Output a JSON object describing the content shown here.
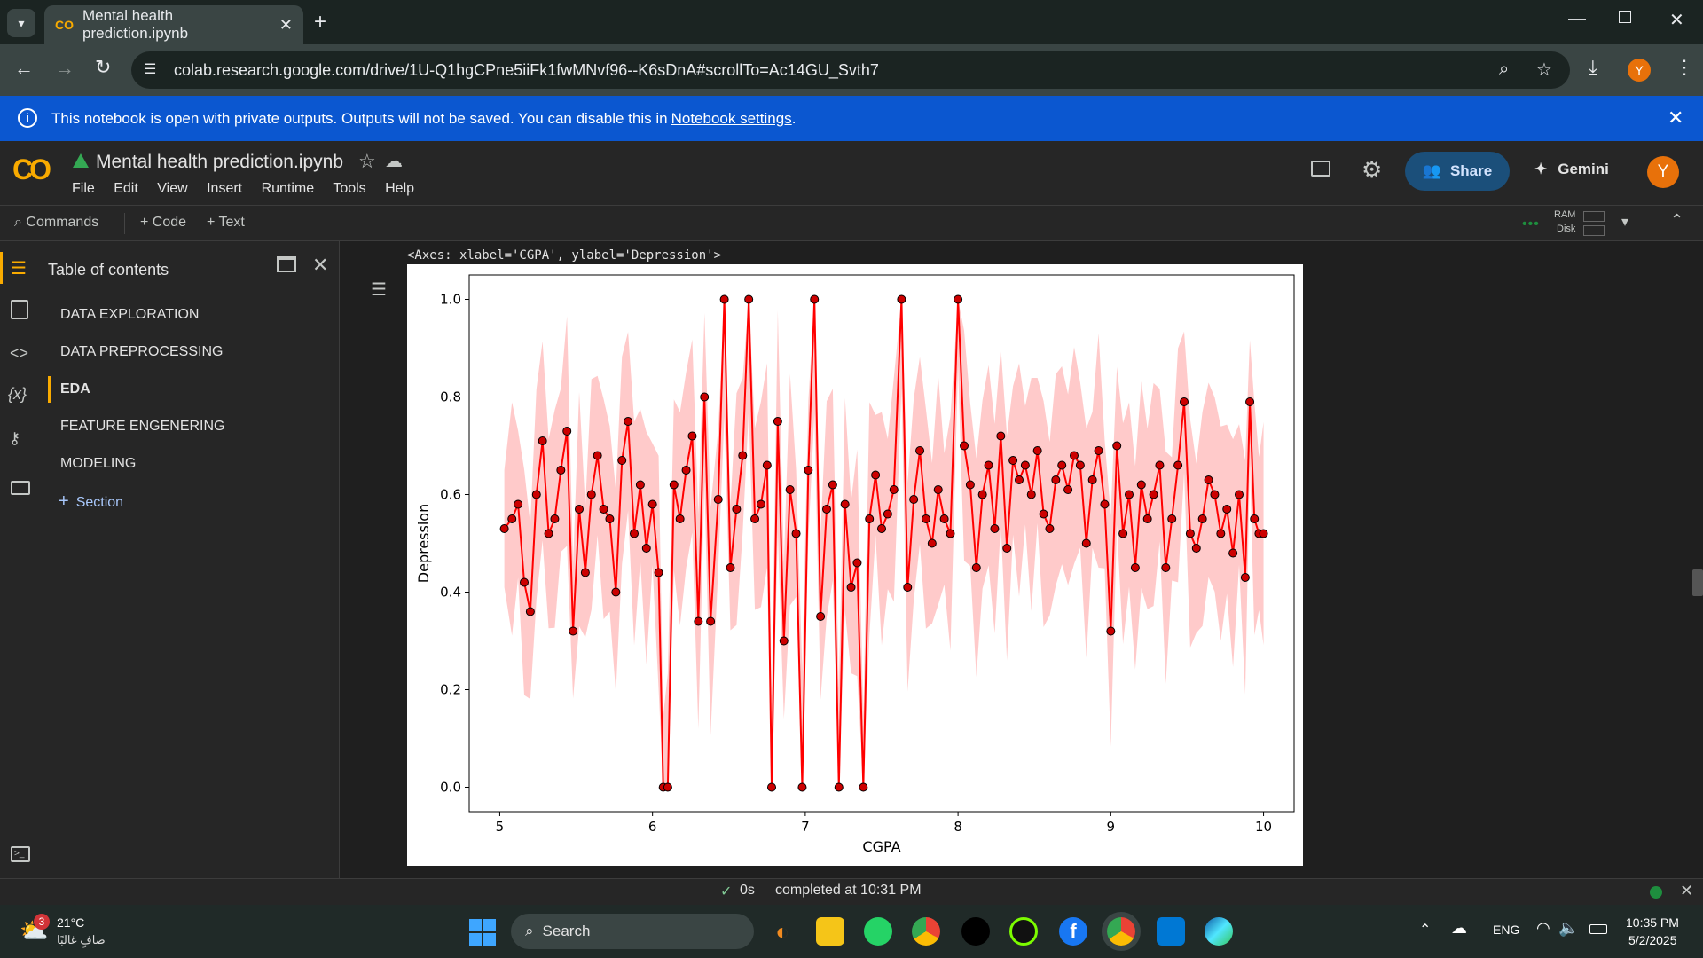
{
  "browser": {
    "tab_title": "Mental health prediction.ipynb",
    "url": "colab.research.google.com/drive/1U-Q1hgCPne5iiFk1fwMNvf96--K6sDnA#scrollTo=Ac14GU_Svth7",
    "profile_initial": "Y"
  },
  "infobar": {
    "text": "This notebook is open with private outputs. Outputs will not be saved. You can disable this in",
    "link": "Notebook settings",
    "suffix": "."
  },
  "colab": {
    "notebook_title": "Mental health prediction.ipynb",
    "logo": "CO",
    "menu": [
      "File",
      "Edit",
      "View",
      "Insert",
      "Runtime",
      "Tools",
      "Help"
    ],
    "share_label": "Share",
    "gemini_label": "Gemini",
    "avatar_initial": "Y"
  },
  "toolbar": {
    "commands": "Commands",
    "code": "+ Code",
    "text": "+ Text",
    "ram": "RAM",
    "disk": "Disk"
  },
  "toc": {
    "title": "Table of contents",
    "items": [
      "DATA EXPLORATION",
      "DATA PREPROCESSING",
      "EDA",
      "FEATURE ENGENERING",
      "MODELING"
    ],
    "add_section": "Section"
  },
  "output": {
    "repr": "<Axes: xlabel='CGPA', ylabel='Depression'>"
  },
  "chart_data": {
    "type": "line",
    "title": "",
    "xlabel": "CGPA",
    "ylabel": "Depression",
    "xlim": [
      4.8,
      10.2
    ],
    "ylim": [
      -0.05,
      1.05
    ],
    "xticks": [
      5,
      6,
      7,
      8,
      9,
      10
    ],
    "yticks": [
      0.0,
      0.2,
      0.4,
      0.6,
      0.8,
      1.0
    ],
    "ytick_labels": [
      "0.0",
      "0.2",
      "0.4",
      "0.6",
      "0.8",
      "1.0"
    ],
    "line_color": "#ff0000",
    "band_color": "#ffb3b3",
    "x": [
      5.03,
      5.08,
      5.12,
      5.16,
      5.2,
      5.24,
      5.28,
      5.32,
      5.36,
      5.4,
      5.44,
      5.48,
      5.52,
      5.56,
      5.6,
      5.64,
      5.68,
      5.72,
      5.76,
      5.8,
      5.84,
      5.88,
      5.92,
      5.96,
      6.0,
      6.04,
      6.07,
      6.1,
      6.14,
      6.18,
      6.22,
      6.26,
      6.3,
      6.34,
      6.38,
      6.43,
      6.47,
      6.51,
      6.55,
      6.59,
      6.63,
      6.67,
      6.71,
      6.75,
      6.78,
      6.82,
      6.86,
      6.9,
      6.94,
      6.98,
      7.02,
      7.06,
      7.1,
      7.14,
      7.18,
      7.22,
      7.26,
      7.3,
      7.34,
      7.38,
      7.42,
      7.46,
      7.5,
      7.54,
      7.58,
      7.63,
      7.67,
      7.71,
      7.75,
      7.79,
      7.83,
      7.87,
      7.91,
      7.95,
      8.0,
      8.04,
      8.08,
      8.12,
      8.16,
      8.2,
      8.24,
      8.28,
      8.32,
      8.36,
      8.4,
      8.44,
      8.48,
      8.52,
      8.56,
      8.6,
      8.64,
      8.68,
      8.72,
      8.76,
      8.8,
      8.84,
      8.88,
      8.92,
      8.96,
      9.0,
      9.04,
      9.08,
      9.12,
      9.16,
      9.2,
      9.24,
      9.28,
      9.32,
      9.36,
      9.4,
      9.44,
      9.48,
      9.52,
      9.56,
      9.6,
      9.64,
      9.68,
      9.72,
      9.76,
      9.8,
      9.84,
      9.88,
      9.91,
      9.94,
      9.97,
      10.0
    ],
    "y": [
      0.53,
      0.55,
      0.58,
      0.42,
      0.36,
      0.6,
      0.71,
      0.52,
      0.55,
      0.65,
      0.73,
      0.32,
      0.57,
      0.44,
      0.6,
      0.68,
      0.57,
      0.55,
      0.4,
      0.67,
      0.75,
      0.52,
      0.62,
      0.49,
      0.58,
      0.44,
      0.0,
      0.0,
      0.62,
      0.55,
      0.65,
      0.72,
      0.34,
      0.8,
      0.34,
      0.59,
      1.0,
      0.45,
      0.57,
      0.68,
      1.0,
      0.55,
      0.58,
      0.66,
      0.0,
      0.75,
      0.3,
      0.61,
      0.52,
      0.0,
      0.65,
      1.0,
      0.35,
      0.57,
      0.62,
      0.0,
      0.58,
      0.41,
      0.46,
      0.0,
      0.55,
      0.64,
      0.53,
      0.56,
      0.61,
      1.0,
      0.41,
      0.59,
      0.69,
      0.55,
      0.5,
      0.61,
      0.55,
      0.52,
      1.0,
      0.7,
      0.62,
      0.45,
      0.6,
      0.66,
      0.53,
      0.72,
      0.49,
      0.67,
      0.63,
      0.66,
      0.6,
      0.69,
      0.56,
      0.53,
      0.63,
      0.66,
      0.61,
      0.68,
      0.66,
      0.5,
      0.63,
      0.69,
      0.58,
      0.32,
      0.7,
      0.52,
      0.6,
      0.45,
      0.62,
      0.55,
      0.6,
      0.66,
      0.45,
      0.55,
      0.66,
      0.79,
      0.52,
      0.49,
      0.55,
      0.63,
      0.6,
      0.52,
      0.57,
      0.48,
      0.6,
      0.43,
      0.79,
      0.55,
      0.52,
      0.52
    ]
  }
}
